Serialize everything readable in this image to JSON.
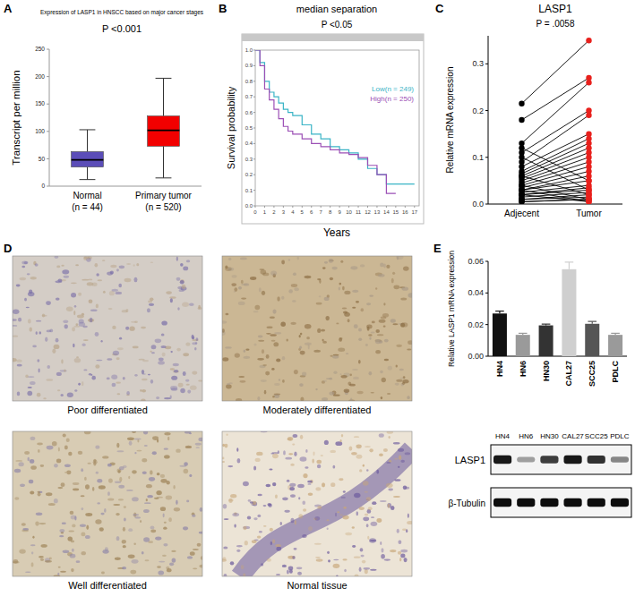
{
  "chart_data": [
    {
      "panel": "A",
      "type": "box",
      "title": "Expression of LASP1 in HNSCC based on major cancer stages",
      "subtitle": "P <0.001",
      "y_label": "Transcript per million",
      "categories": [
        "Normal\n(n = 44)",
        "Primary tumor\n(n = 520)"
      ],
      "stats": [
        {
          "min": 12,
          "q1": 35,
          "median": 48,
          "q3": 63,
          "max": 103
        },
        {
          "min": 15,
          "q1": 73,
          "median": 102,
          "q3": 128,
          "max": 197
        }
      ],
      "colors": [
        "#5b4db8",
        "#f20000"
      ],
      "ylim": [
        0,
        250
      ],
      "yticks": [
        0,
        50,
        100,
        150,
        200,
        250
      ]
    },
    {
      "panel": "B",
      "type": "line",
      "title": "median separation",
      "subtitle": "P <0.05",
      "x_label": "Years",
      "y_label": "Survival probability",
      "x": [
        0,
        0.5,
        1,
        1.5,
        2,
        2.5,
        3,
        3.5,
        4,
        5,
        6,
        7,
        8,
        9,
        10,
        11,
        12,
        13,
        14,
        15,
        16,
        17
      ],
      "series": [
        {
          "name": "Low(n = 249)",
          "color": "#3ab4c6",
          "values": [
            1,
            0.92,
            0.8,
            0.73,
            0.7,
            0.66,
            0.62,
            0.6,
            0.58,
            0.52,
            0.46,
            0.43,
            0.38,
            0.36,
            0.34,
            0.3,
            0.24,
            0.2,
            0.14,
            0.14,
            0.14,
            0.14
          ]
        },
        {
          "name": "High(n = 250)",
          "color": "#9b4fb5",
          "values": [
            1,
            0.9,
            0.75,
            0.68,
            0.62,
            0.56,
            0.51,
            0.48,
            0.46,
            0.43,
            0.4,
            0.38,
            0.36,
            0.34,
            0.33,
            0.31,
            0.26,
            0.2,
            0.08,
            0.08,
            null,
            null
          ]
        }
      ],
      "line_style": "step",
      "legend": "upper-right",
      "xlim": [
        0,
        17.5
      ],
      "xticks": [
        0,
        1,
        2,
        3,
        4,
        5,
        6,
        7,
        8,
        9,
        10,
        11,
        12,
        13,
        14,
        15,
        16,
        17
      ],
      "ylim": [
        0,
        1
      ],
      "yticks": [
        {
          "value": 0,
          "label": "0.0"
        },
        0.1,
        0.2,
        0.3,
        0.4,
        0.5,
        0.6,
        0.7,
        0.8,
        0.9,
        {
          "value": 1,
          "label": "1.0"
        }
      ]
    },
    {
      "panel": "C",
      "type": "paired_dot",
      "title": "LASP1",
      "subtitle": "P = .0058",
      "y_label": "Relative mRNA expression",
      "categories": [
        "Adjecent",
        "Tumor"
      ],
      "colors": [
        "#000000",
        "#e8201c"
      ],
      "series": [
        {
          "values": [
            0.215,
            0.35
          ]
        },
        {
          "values": [
            0.18,
            0.27
          ]
        },
        {
          "values": [
            0.13,
            0.26
          ]
        },
        {
          "values": [
            0.11,
            0.2
          ]
        },
        {
          "values": [
            0.09,
            0.19
          ]
        },
        {
          "values": [
            0.08,
            0.15
          ]
        },
        {
          "values": [
            0.07,
            0.14
          ]
        },
        {
          "values": [
            0.065,
            0.13
          ]
        },
        {
          "values": [
            0.06,
            0.12
          ]
        },
        {
          "values": [
            0.055,
            0.11
          ]
        },
        {
          "values": [
            0.05,
            0.1
          ]
        },
        {
          "values": [
            0.045,
            0.09
          ]
        },
        {
          "values": [
            0.04,
            0.08
          ]
        },
        {
          "values": [
            0.035,
            0.07
          ]
        },
        {
          "values": [
            0.03,
            0.06
          ]
        },
        {
          "values": [
            0.03,
            0.05
          ]
        },
        {
          "values": [
            0.025,
            0.04
          ]
        },
        {
          "values": [
            0.02,
            0.035
          ]
        },
        {
          "values": [
            0.02,
            0.03
          ]
        },
        {
          "values": [
            0.015,
            0.025
          ]
        },
        {
          "values": [
            0.01,
            0.02
          ]
        },
        {
          "values": [
            0.01,
            0.015
          ]
        },
        {
          "values": [
            0.005,
            0.01
          ]
        },
        {
          "values": [
            0.005,
            0.01
          ]
        },
        {
          "values": [
            0.12,
            0.05
          ]
        },
        {
          "values": [
            0.1,
            0.03
          ]
        },
        {
          "values": [
            0.06,
            0.02
          ]
        },
        {
          "values": [
            0.04,
            0.01
          ]
        },
        {
          "values": [
            0.03,
            0.005
          ]
        },
        {
          "values": [
            0.02,
            0.005
          ]
        }
      ],
      "ylim": [
        0,
        0.36
      ],
      "yticks": [
        {
          "value": 0,
          "label": "0.0"
        },
        0.1,
        0.2,
        0.3
      ]
    },
    {
      "panel": "E",
      "type": "bar",
      "y_label": "Relative LASP1 mRNA expression",
      "categories": [
        "HN4",
        "HN6",
        "HN30",
        "CAL27",
        "SCC25",
        "PDLC"
      ],
      "values": [
        0.027,
        0.0135,
        0.0195,
        0.055,
        0.0205,
        0.0135
      ],
      "errors": [
        0.0015,
        0.001,
        0.0008,
        0.0045,
        0.0015,
        0.001
      ],
      "colors": [
        "#111111",
        "#9a9a9a",
        "#333333",
        "#cfcfcf",
        "#555555",
        "#9a9a9a"
      ],
      "ylim": [
        0,
        0.06
      ],
      "yticks": [
        {
          "value": 0,
          "label": "0.00"
        },
        0.02,
        0.04,
        0.06
      ]
    }
  ],
  "figure_d": {
    "panel": "D",
    "images": [
      {
        "caption": "Poor differentiated"
      },
      {
        "caption": "Moderately differentiated"
      },
      {
        "caption": "Well differentiated"
      },
      {
        "caption": "Normal tissue"
      }
    ]
  },
  "blot": {
    "lanes": [
      "HN4",
      "HN6",
      "HN30",
      "CAL27",
      "SCC25",
      "PDLC"
    ],
    "rows": [
      {
        "label": "LASP1",
        "intensity": [
          0.9,
          0.35,
          0.75,
          0.9,
          0.8,
          0.45
        ]
      },
      {
        "label": "β-Tubulin",
        "intensity": [
          0.95,
          0.95,
          0.95,
          0.95,
          0.95,
          0.95
        ]
      }
    ]
  }
}
